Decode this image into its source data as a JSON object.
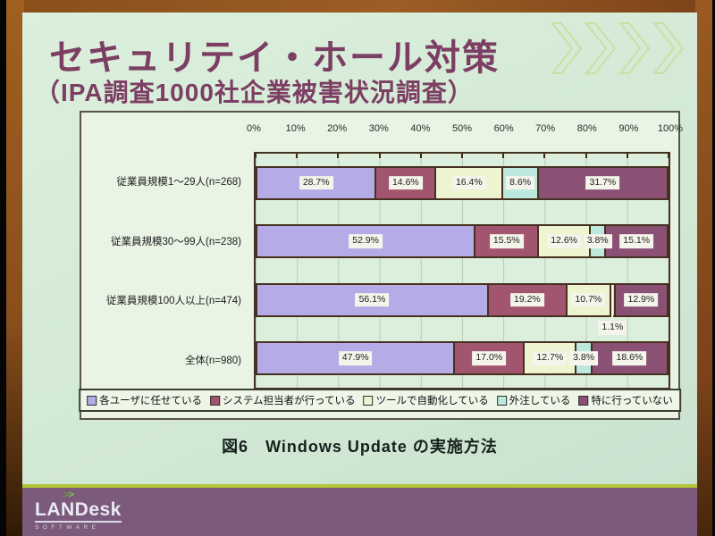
{
  "slide": {
    "title": "セキュリテイ・ホール対策",
    "subtitle": "（IPA調査1000社企業被害状況調査）",
    "caption": "図6　Windows Update の実施方法"
  },
  "chart_data": {
    "type": "bar",
    "variant": "horizontal-stacked",
    "title": "図6 Windows Update の実施方法",
    "categories": [
      "従業員規模1～29人(n=268)",
      "従業員規模30～99人(n=238)",
      "従業員規模100人以上(n=474)",
      "全体(n=980)"
    ],
    "series": [
      {
        "name": "各ユーザに任せている",
        "color": "#b5abe6",
        "values": [
          28.7,
          52.9,
          56.1,
          47.9
        ]
      },
      {
        "name": "システム担当者が行っている",
        "color": "#a1556f",
        "values": [
          14.6,
          15.5,
          19.2,
          17.0
        ]
      },
      {
        "name": "ツールで自動化している",
        "color": "#eef3d0",
        "values": [
          16.4,
          12.6,
          10.7,
          12.7
        ]
      },
      {
        "name": "外注している",
        "color": "#bce8dd",
        "values": [
          8.6,
          3.8,
          1.1,
          3.8
        ]
      },
      {
        "name": "特に行っていない",
        "color": "#8a5175",
        "values": [
          31.7,
          15.1,
          12.9,
          18.6
        ]
      }
    ],
    "x_ticks": [
      "0%",
      "10%",
      "20%",
      "30%",
      "40%",
      "50%",
      "60%",
      "70%",
      "80%",
      "90%",
      "100%"
    ],
    "xlim": [
      0,
      100
    ],
    "value_suffix": "%",
    "legend_position": "bottom",
    "grid": true
  },
  "footer": {
    "chevrons_left": ">",
    "chevrons_right": ">",
    "brand": "LANDesk",
    "brand_sub": "SOFTWARE"
  },
  "colors": {
    "slide_bg": "#d5ead7",
    "title_text": "#7c3e62",
    "bar_border": "#46301f",
    "footer_band": "#7c5a7b",
    "footer_line": "#b2c636",
    "frame_brown": "#8a4e1c"
  }
}
